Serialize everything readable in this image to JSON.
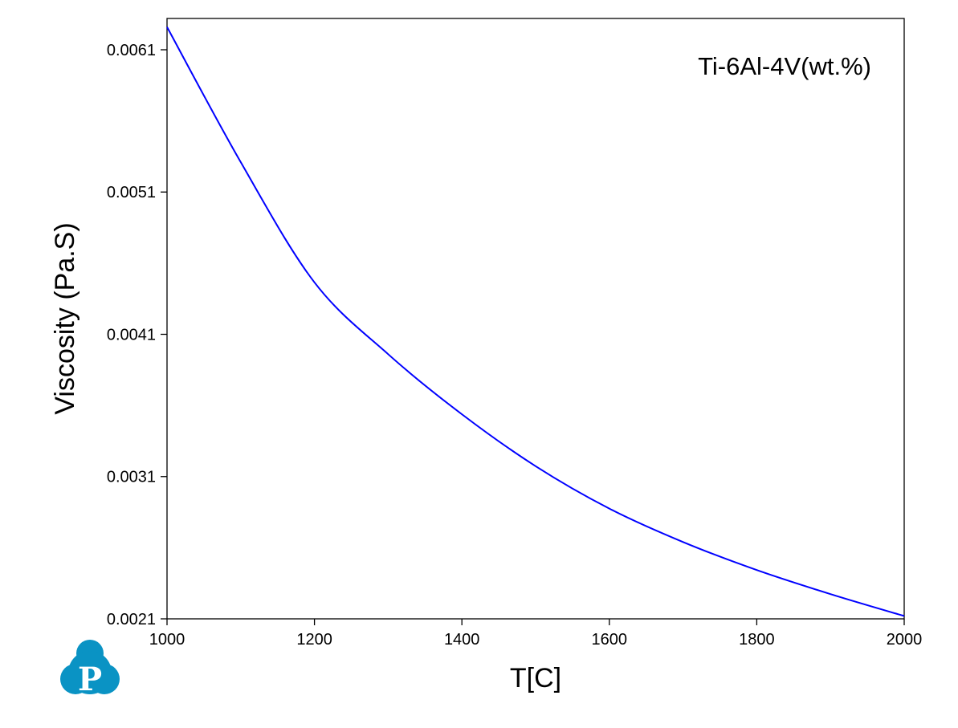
{
  "chart_data": {
    "type": "line",
    "title": "",
    "xlabel": "T[C]",
    "ylabel": "Viscosity (Pa.S)",
    "xlim": [
      1000,
      2000
    ],
    "ylim": [
      0.0021,
      0.00632
    ],
    "xticks": [
      1000,
      1200,
      1400,
      1600,
      1800,
      2000
    ],
    "xtick_labels": [
      "1000",
      "1200",
      "1400",
      "1600",
      "1800",
      "2000"
    ],
    "yticks": [
      0.0021,
      0.0031,
      0.0041,
      0.0051,
      0.0061
    ],
    "ytick_labels": [
      "0.0021",
      "0.0031",
      "0.0041",
      "0.0051",
      "0.0061"
    ],
    "grid": false,
    "annotation": "Ti-6Al-4V(wt.%)",
    "series": [
      {
        "name": "Ti-6Al-4V",
        "color": "#0000ff",
        "x": [
          1000,
          1100,
          1200,
          1300,
          1400,
          1500,
          1600,
          1700,
          1800,
          1900,
          2000
        ],
        "y": [
          0.00626,
          0.00531,
          0.004465,
          0.00396,
          0.003538,
          0.003173,
          0.002875,
          0.00264,
          0.002443,
          0.002274,
          0.00212
        ]
      }
    ]
  },
  "logo": {
    "letter": "P",
    "color": "#0a93c4"
  }
}
